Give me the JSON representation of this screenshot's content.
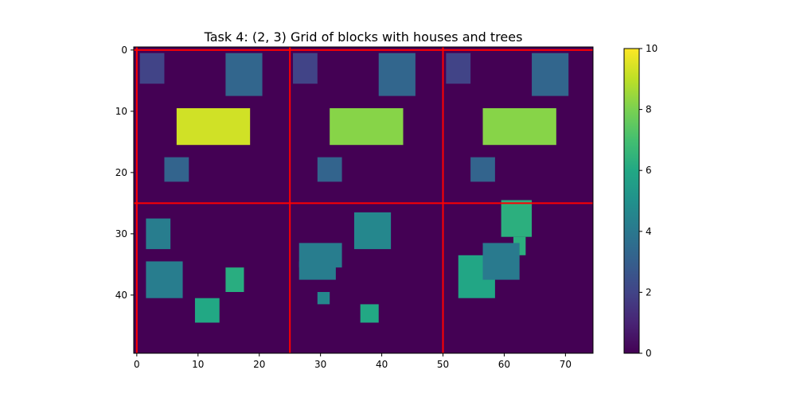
{
  "chart_data": {
    "type": "heatmap",
    "title": "Task 4: (2, 3) Grid of blocks with houses and trees",
    "xlabel": "",
    "ylabel": "",
    "grid_rows": 50,
    "grid_cols": 75,
    "xlim": [
      -0.5,
      74.5
    ],
    "ylim": [
      49.5,
      -0.5
    ],
    "x_ticks": [
      0,
      10,
      20,
      30,
      40,
      50,
      60,
      70
    ],
    "y_ticks": [
      0,
      10,
      20,
      30,
      40
    ],
    "colormap": "viridis",
    "color_range": [
      0,
      10
    ],
    "colorbar_ticks": [
      0,
      2,
      4,
      6,
      8,
      10
    ],
    "background_value": 0,
    "block_grid": {
      "rows": 2,
      "cols": 3,
      "block_width": 25,
      "block_height": 25,
      "line_color": "#ff0000"
    },
    "regions": [
      {
        "x": [
          1,
          4
        ],
        "y": [
          1,
          5
        ],
        "value": 2
      },
      {
        "x": [
          15,
          20
        ],
        "y": [
          1,
          7
        ],
        "value": 3.3
      },
      {
        "x": [
          7,
          18
        ],
        "y": [
          10,
          15
        ],
        "value": 9.3
      },
      {
        "x": [
          5,
          8
        ],
        "y": [
          18,
          21
        ],
        "value": 3.2
      },
      {
        "x": [
          26,
          29
        ],
        "y": [
          1,
          5
        ],
        "value": 2
      },
      {
        "x": [
          40,
          45
        ],
        "y": [
          1,
          7
        ],
        "value": 3.3
      },
      {
        "x": [
          32,
          43
        ],
        "y": [
          10,
          15
        ],
        "value": 8.2
      },
      {
        "x": [
          30,
          33
        ],
        "y": [
          18,
          21
        ],
        "value": 3.2
      },
      {
        "x": [
          51,
          54
        ],
        "y": [
          1,
          5
        ],
        "value": 2
      },
      {
        "x": [
          65,
          70
        ],
        "y": [
          1,
          7
        ],
        "value": 3.3
      },
      {
        "x": [
          57,
          68
        ],
        "y": [
          10,
          15
        ],
        "value": 8.2
      },
      {
        "x": [
          55,
          58
        ],
        "y": [
          18,
          21
        ],
        "value": 3.2
      },
      {
        "x": [
          2,
          5
        ],
        "y": [
          28,
          32
        ],
        "value": 4.2
      },
      {
        "x": [
          2,
          7
        ],
        "y": [
          35,
          40
        ],
        "value": 4.2
      },
      {
        "x": [
          15,
          17
        ],
        "y": [
          36,
          39
        ],
        "value": 6.2
      },
      {
        "x": [
          10,
          13
        ],
        "y": [
          41,
          44
        ],
        "value": 6.0
      },
      {
        "x": [
          36,
          41
        ],
        "y": [
          27,
          32
        ],
        "value": 4.6
      },
      {
        "x": [
          27,
          33
        ],
        "y": [
          32,
          35
        ],
        "value": 4.2
      },
      {
        "x": [
          27,
          32
        ],
        "y": [
          35,
          37
        ],
        "value": 4.2
      },
      {
        "x": [
          30,
          31
        ],
        "y": [
          40,
          41
        ],
        "value": 4.6
      },
      {
        "x": [
          37,
          39
        ],
        "y": [
          42,
          44
        ],
        "value": 6.0
      },
      {
        "x": [
          60,
          64
        ],
        "y": [
          25,
          30
        ],
        "value": 6.3
      },
      {
        "x": [
          62,
          63
        ],
        "y": [
          31,
          33
        ],
        "value": 6.3
      },
      {
        "x": [
          53,
          58
        ],
        "y": [
          34,
          40
        ],
        "value": 5.9
      },
      {
        "x": [
          57,
          62
        ],
        "y": [
          32,
          37
        ],
        "value": 4.1
      }
    ]
  }
}
